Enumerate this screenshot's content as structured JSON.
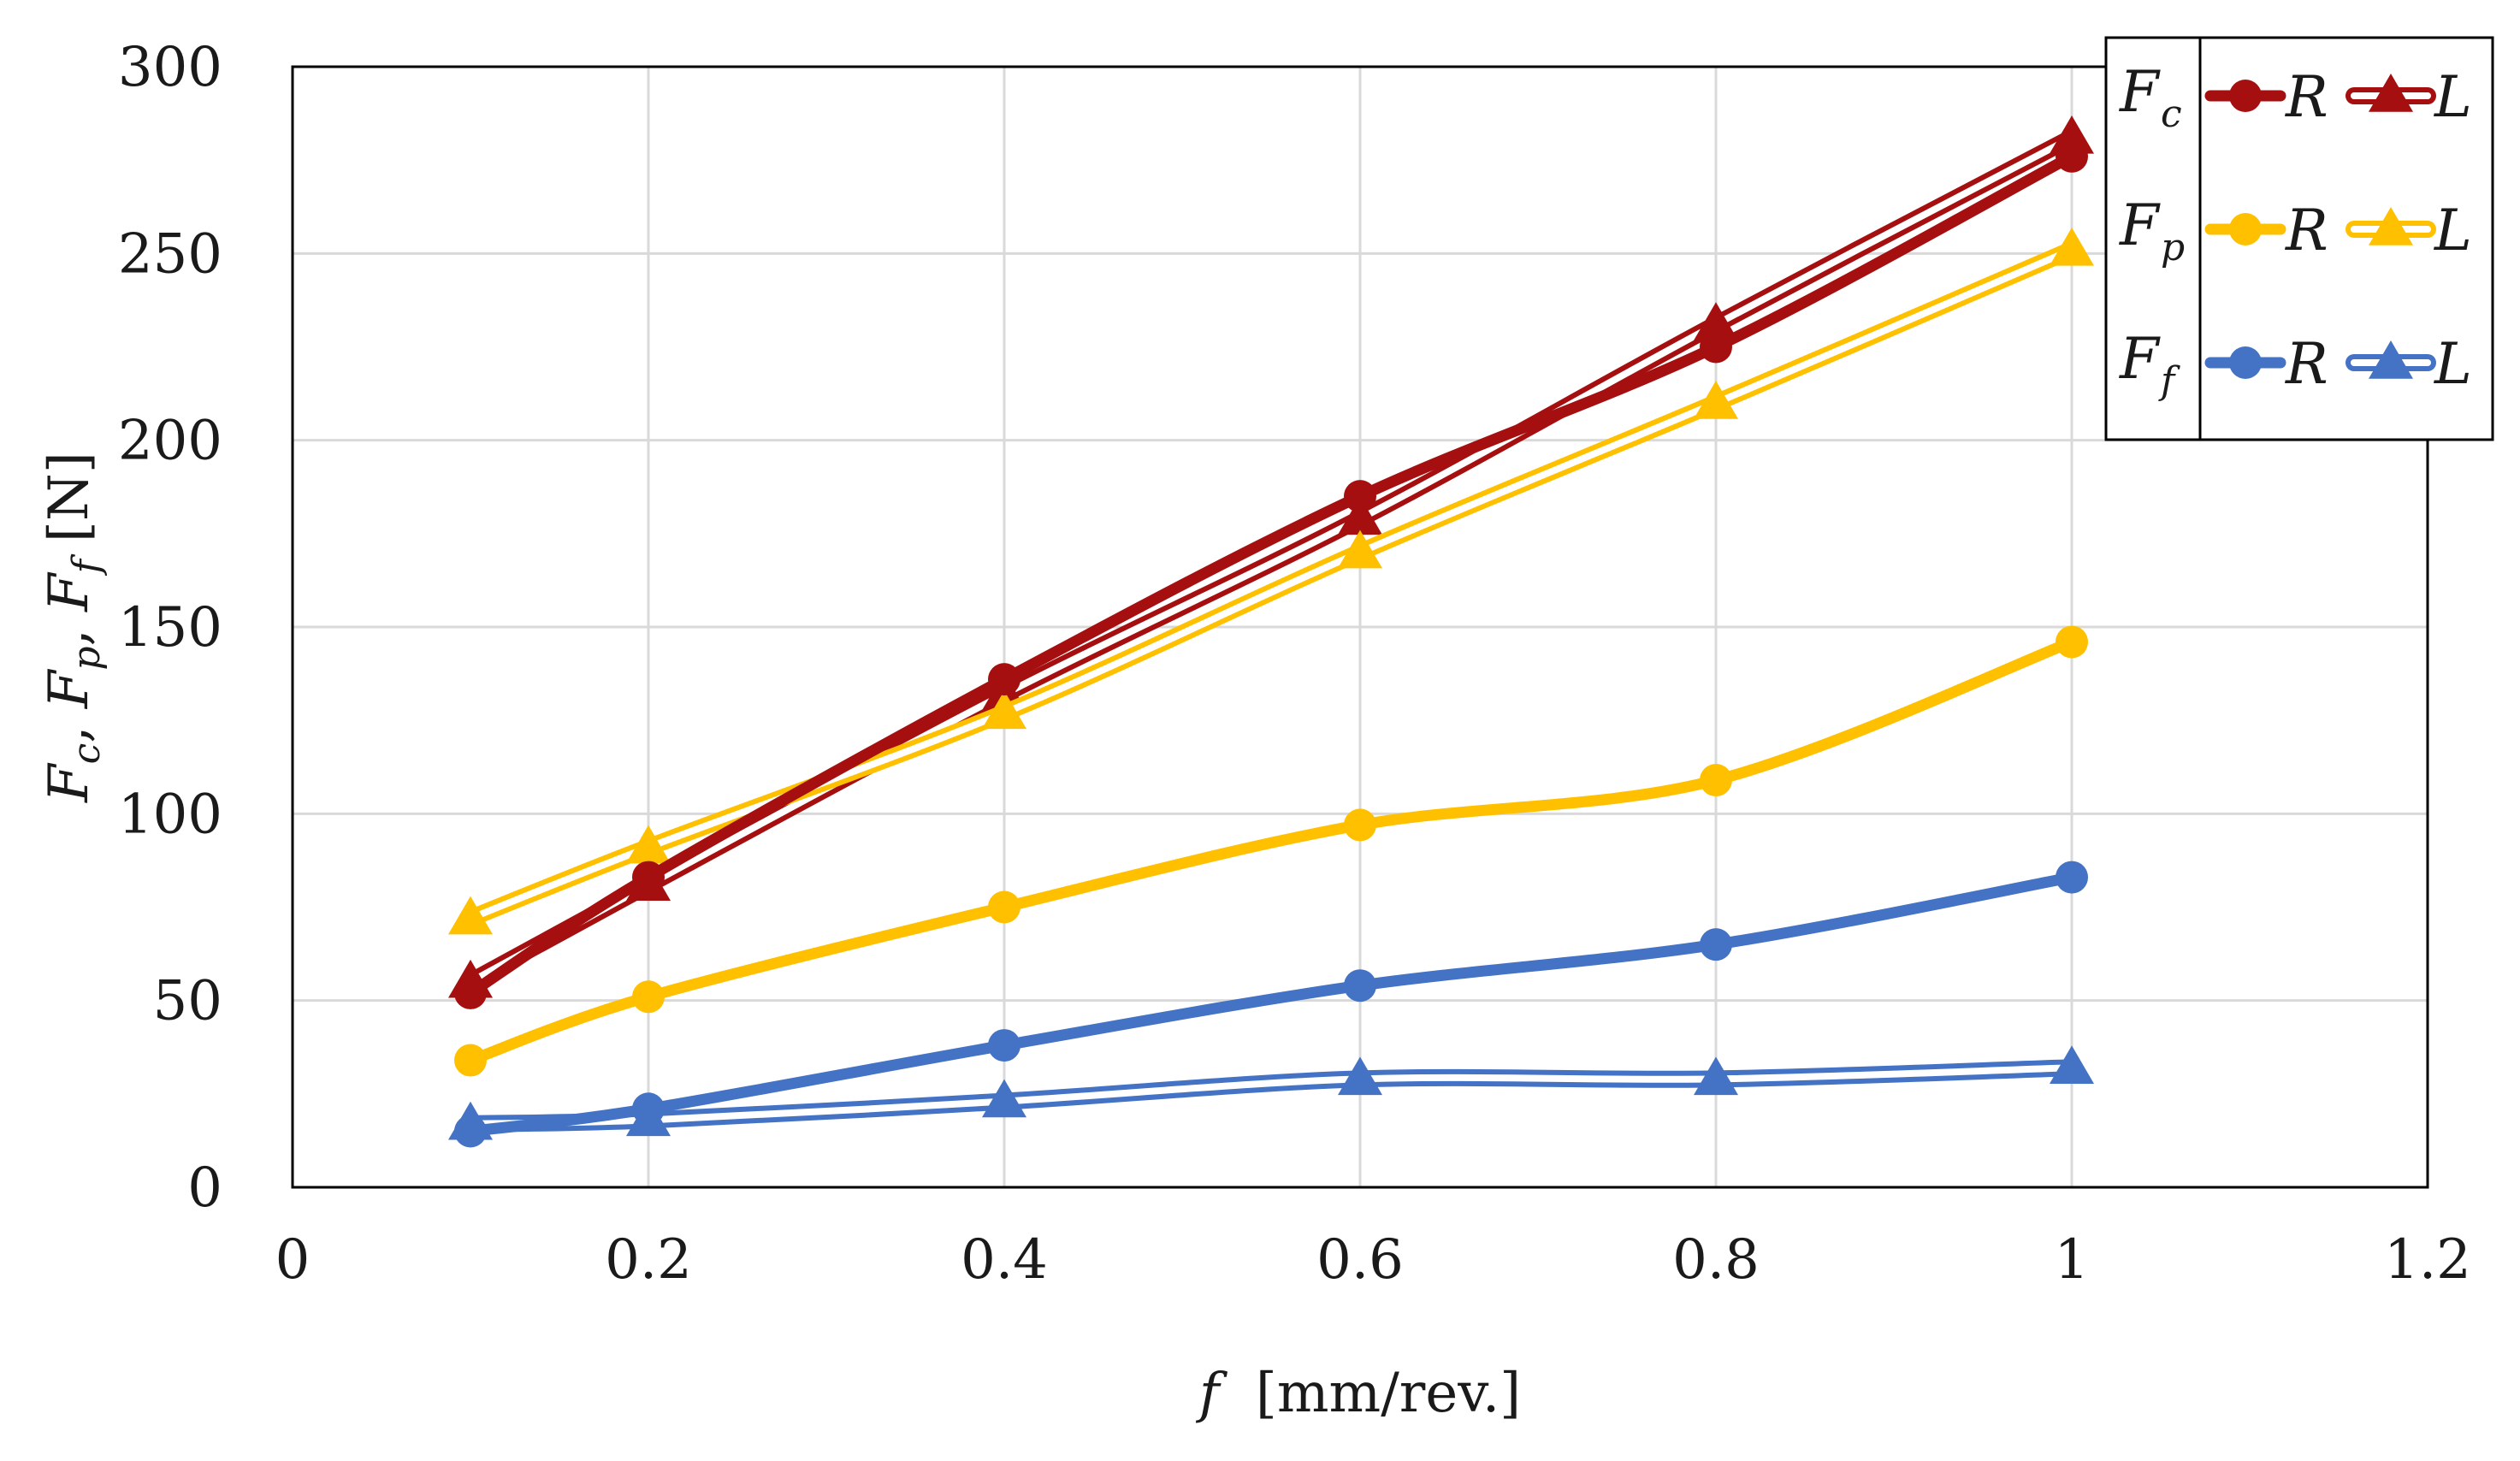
{
  "chart_data": {
    "type": "line",
    "title": "",
    "xlabel": {
      "symbol": "f",
      "unit": "[mm/rev.]"
    },
    "ylabel": {
      "symbols": [
        "F",
        "c",
        "F",
        "p",
        "F",
        "f"
      ],
      "unit": "[N]"
    },
    "xlim": [
      0,
      1.2
    ],
    "ylim": [
      0,
      300
    ],
    "x_ticks": [
      "0",
      "0.2",
      "0.4",
      "0.6",
      "0.8",
      "1",
      "1.2"
    ],
    "y_ticks": [
      "0",
      "50",
      "100",
      "150",
      "200",
      "250",
      "300"
    ],
    "grid": true,
    "legend_position": "top-right",
    "legend": [
      {
        "symbol": "F",
        "sub": "c",
        "r_label": "R",
        "l_label": "L"
      },
      {
        "symbol": "F",
        "sub": "p",
        "r_label": "R",
        "l_label": "L"
      },
      {
        "symbol": "F",
        "sub": "f",
        "r_label": "R",
        "l_label": "L"
      }
    ],
    "x": [
      0.1,
      0.2,
      0.4,
      0.6,
      0.8,
      1.0
    ],
    "series": [
      {
        "name": "Fc R",
        "force": "Fc",
        "variant": "R",
        "marker": "circle",
        "color": "#a50f0f",
        "values": [
          52,
          83,
          136,
          185,
          225,
          276
        ]
      },
      {
        "name": "Fc L",
        "force": "Fc",
        "variant": "L",
        "marker": "triangle",
        "color": "#a50f0f",
        "values": [
          55,
          81,
          132,
          179,
          231,
          281
        ]
      },
      {
        "name": "Fp R",
        "force": "Fp",
        "variant": "R",
        "marker": "circle",
        "color": "#ffc000",
        "values": [
          34,
          51,
          75,
          97,
          109,
          146
        ]
      },
      {
        "name": "Fp L",
        "force": "Fp",
        "variant": "L",
        "marker": "triangle",
        "color": "#ffc000",
        "values": [
          72,
          91,
          127,
          170,
          210,
          251
        ]
      },
      {
        "name": "Ff R",
        "force": "Ff",
        "variant": "R",
        "marker": "circle",
        "color": "#4472c4",
        "values": [
          15,
          21,
          38,
          54,
          65,
          83
        ]
      },
      {
        "name": "Ff L",
        "force": "Ff",
        "variant": "L",
        "marker": "triangle",
        "color": "#4472c4",
        "values": [
          17,
          18,
          23,
          29,
          29,
          32
        ]
      }
    ]
  }
}
